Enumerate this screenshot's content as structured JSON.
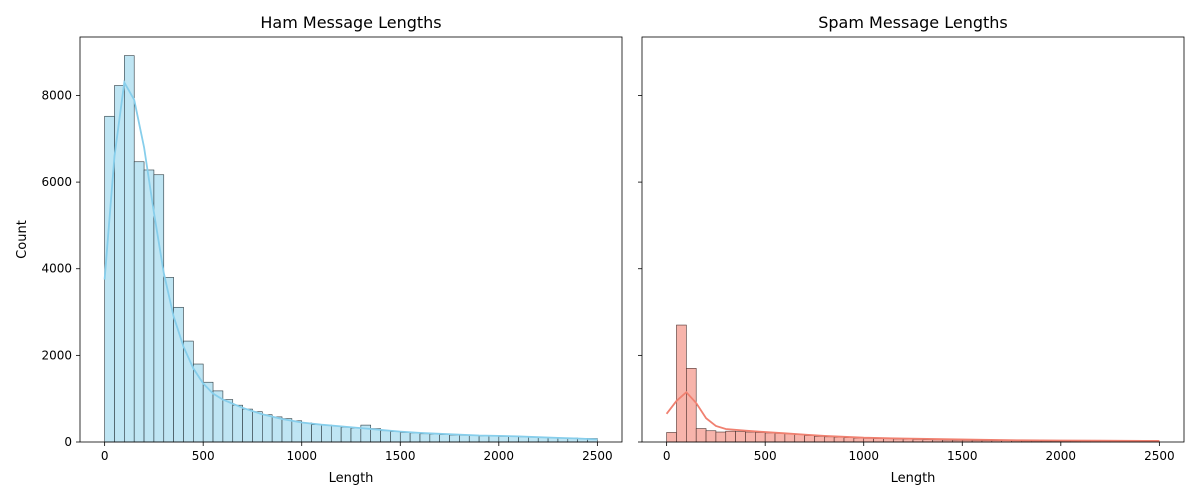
{
  "chart_data": [
    {
      "type": "bar",
      "title": "Ham Message Lengths",
      "xlabel": "Length",
      "ylabel": "Count",
      "xlim": [
        -125,
        2625
      ],
      "ylim": [
        0,
        9350
      ],
      "xticks": [
        0,
        500,
        1000,
        1500,
        2000,
        2500
      ],
      "yticks": [
        0,
        2000,
        4000,
        6000,
        8000
      ],
      "bin_edges_start": 0,
      "bin_width": 50,
      "values": [
        7520,
        8230,
        8920,
        6470,
        6280,
        6170,
        3800,
        3110,
        2330,
        1800,
        1380,
        1180,
        980,
        850,
        760,
        700,
        630,
        580,
        540,
        490,
        440,
        400,
        390,
        370,
        340,
        320,
        390,
        310,
        260,
        240,
        220,
        210,
        190,
        180,
        170,
        160,
        155,
        150,
        140,
        135,
        130,
        125,
        120,
        110,
        105,
        100,
        95,
        90,
        85,
        80
      ],
      "kde": [
        [
          0,
          3750
        ],
        [
          50,
          6600
        ],
        [
          100,
          8300
        ],
        [
          150,
          7900
        ],
        [
          200,
          6800
        ],
        [
          250,
          5300
        ],
        [
          300,
          3900
        ],
        [
          350,
          2900
        ],
        [
          400,
          2200
        ],
        [
          450,
          1700
        ],
        [
          500,
          1350
        ],
        [
          550,
          1120
        ],
        [
          600,
          980
        ],
        [
          700,
          790
        ],
        [
          800,
          640
        ],
        [
          900,
          530
        ],
        [
          1000,
          450
        ],
        [
          1100,
          400
        ],
        [
          1200,
          360
        ],
        [
          1300,
          320
        ],
        [
          1400,
          280
        ],
        [
          1500,
          240
        ],
        [
          1600,
          210
        ],
        [
          1700,
          190
        ],
        [
          1800,
          170
        ],
        [
          1900,
          150
        ],
        [
          2000,
          140
        ],
        [
          2100,
          130
        ],
        [
          2200,
          110
        ],
        [
          2300,
          95
        ],
        [
          2400,
          80
        ],
        [
          2500,
          60
        ]
      ],
      "colors": {
        "bar": "#bfe5f3",
        "edge": "#2b3a40",
        "kde": "#87ceeb"
      },
      "grid": false
    },
    {
      "type": "bar",
      "title": "Spam Message Lengths",
      "xlabel": "Length",
      "ylabel": "",
      "xlim": [
        -125,
        2625
      ],
      "ylim": [
        0,
        9350
      ],
      "xticks": [
        0,
        500,
        1000,
        1500,
        2000,
        2500
      ],
      "yticks": [
        0,
        2000,
        4000,
        6000,
        8000
      ],
      "show_ytick_labels": false,
      "bin_edges_start": 0,
      "bin_width": 50,
      "values": [
        220,
        2700,
        1700,
        310,
        260,
        230,
        250,
        240,
        230,
        220,
        210,
        200,
        190,
        170,
        150,
        130,
        120,
        110,
        100,
        90,
        85,
        80,
        75,
        70,
        65,
        60,
        55,
        50,
        45,
        40,
        38,
        36,
        34,
        32,
        30,
        28,
        26,
        25,
        24,
        23,
        22,
        21,
        20,
        19,
        18,
        17,
        16,
        15,
        14,
        13
      ],
      "kde": [
        [
          0,
          650
        ],
        [
          50,
          950
        ],
        [
          100,
          1150
        ],
        [
          150,
          900
        ],
        [
          200,
          550
        ],
        [
          250,
          370
        ],
        [
          300,
          300
        ],
        [
          400,
          260
        ],
        [
          500,
          230
        ],
        [
          600,
          200
        ],
        [
          700,
          170
        ],
        [
          800,
          140
        ],
        [
          900,
          120
        ],
        [
          1000,
          100
        ],
        [
          1200,
          80
        ],
        [
          1400,
          65
        ],
        [
          1600,
          50
        ],
        [
          1800,
          40
        ],
        [
          2000,
          35
        ],
        [
          2200,
          30
        ],
        [
          2500,
          25
        ]
      ],
      "colors": {
        "bar": "#f7b4ab",
        "edge": "#4a2f2c",
        "kde": "#f08070"
      },
      "grid": false
    }
  ]
}
